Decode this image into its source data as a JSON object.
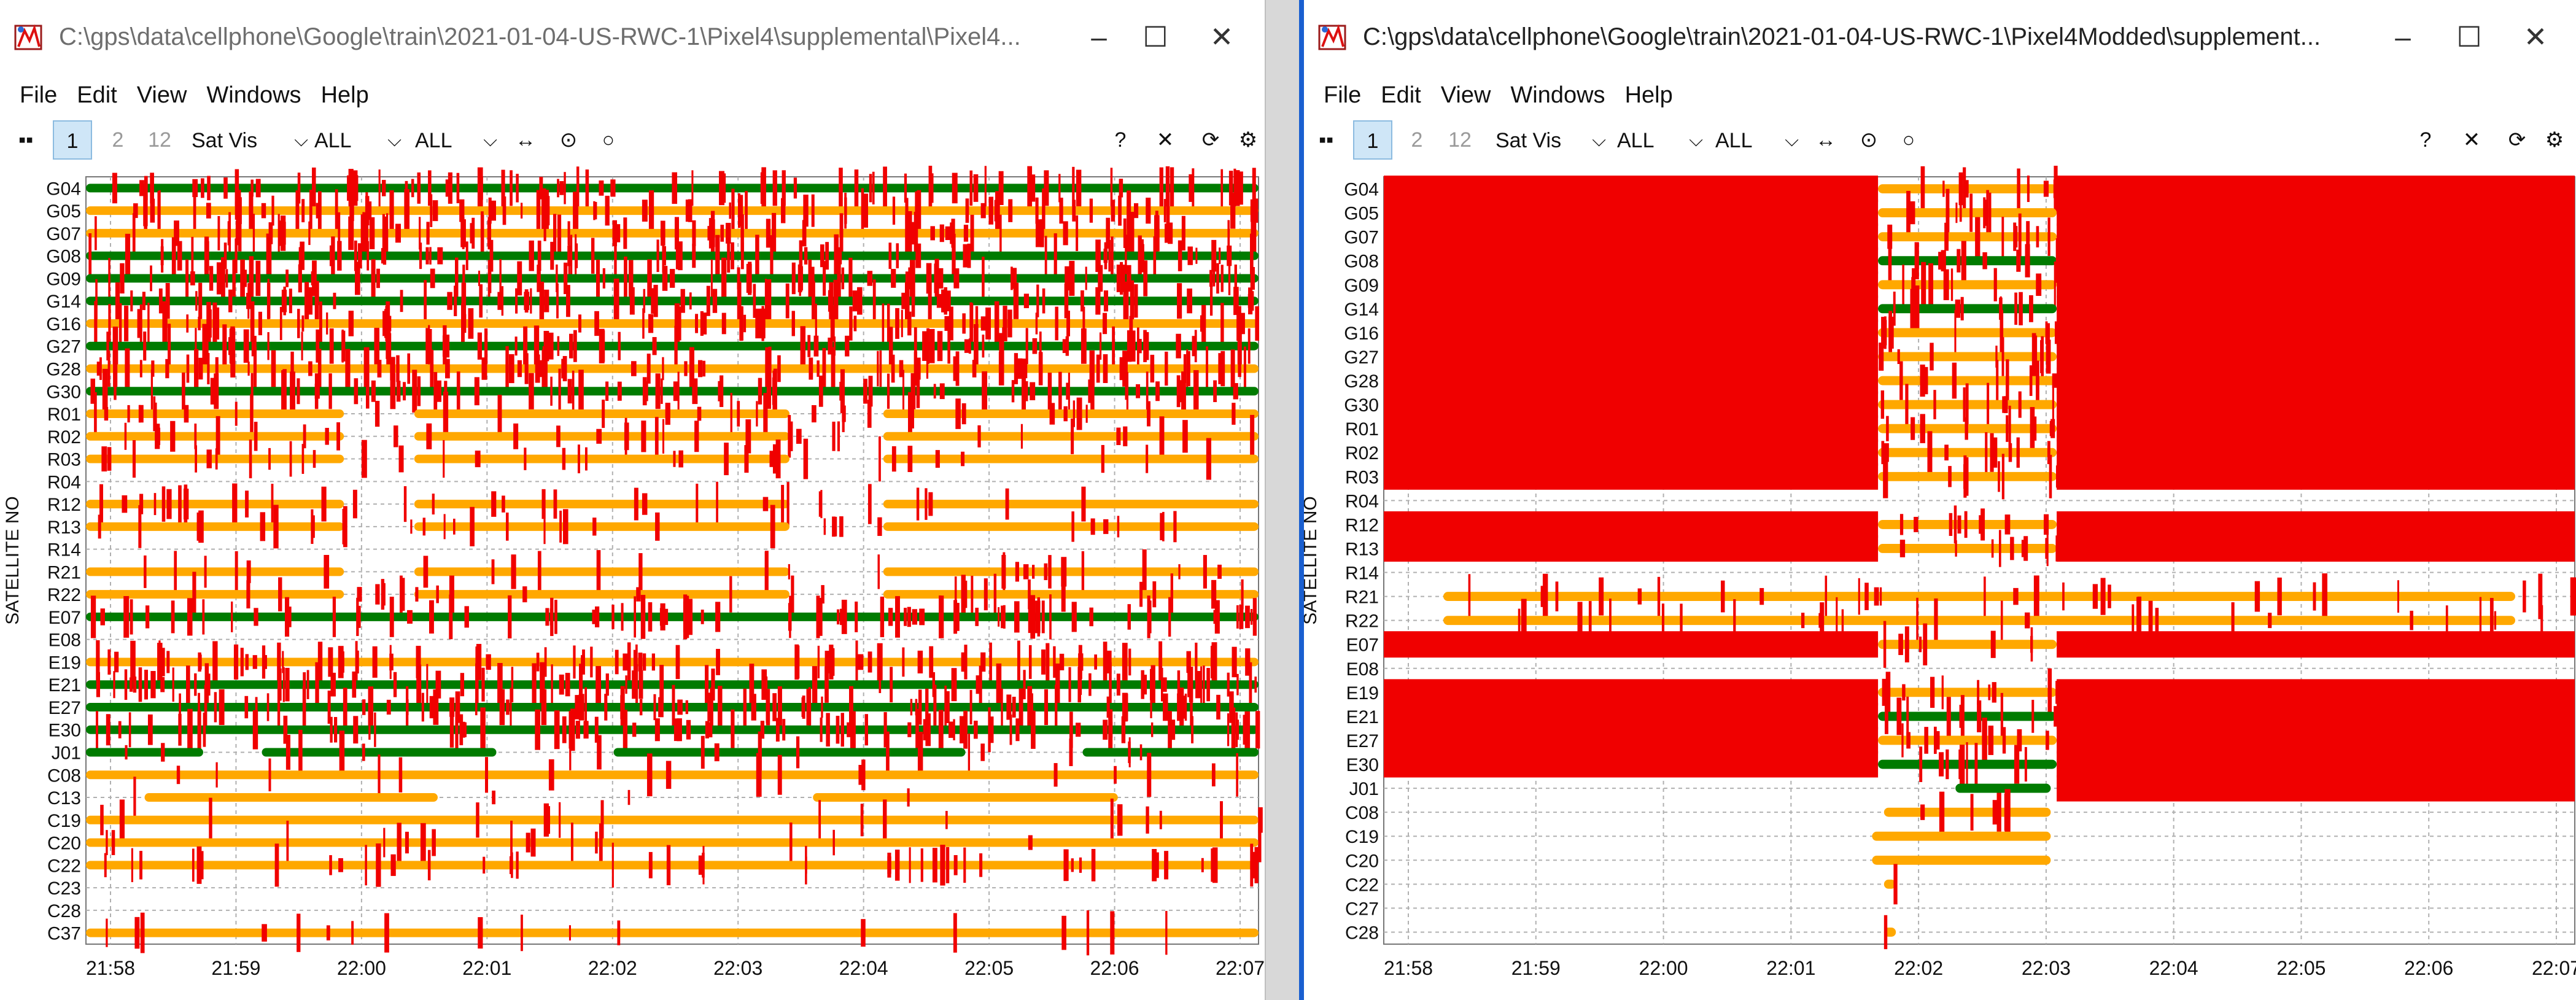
{
  "left_window": {
    "title": "C:\\gps\\data\\cellphone\\Google\\train\\2021-01-04-US-RWC-1\\Pixel4\\supplemental\\Pixel4...",
    "menu": [
      "File",
      "Edit",
      "View",
      "Windows",
      "Help"
    ],
    "toolbar": {
      "plot_1": "1",
      "plot_2": "2",
      "plot_12": "12",
      "plot_type": "Sat Vis",
      "filter_1": "ALL",
      "filter_2": "ALL",
      "help": "?"
    },
    "y_axis_label": "SATELLITE NO",
    "satellites": [
      "G04",
      "G05",
      "G07",
      "G08",
      "G09",
      "G14",
      "G16",
      "G27",
      "G28",
      "G30",
      "R01",
      "R02",
      "R03",
      "R04",
      "R12",
      "R13",
      "R14",
      "R21",
      "R22",
      "E07",
      "E08",
      "E19",
      "E21",
      "E27",
      "E30",
      "J01",
      "C08",
      "C13",
      "C19",
      "C20",
      "C22",
      "C23",
      "C28",
      "C37"
    ],
    "time_labels": [
      "21:58",
      "21:59",
      "22:00",
      "22:01",
      "22:02",
      "22:03",
      "22:04",
      "22:05",
      "22:06",
      "22:07"
    ]
  },
  "right_window": {
    "title": "C:\\gps\\data\\cellphone\\Google\\train\\2021-01-04-US-RWC-1\\Pixel4Modded\\supplement...",
    "menu": [
      "File",
      "Edit",
      "View",
      "Windows",
      "Help"
    ],
    "toolbar": {
      "plot_1": "1",
      "plot_2": "2",
      "plot_12": "12",
      "plot_type": "Sat Vis",
      "filter_1": "ALL",
      "filter_2": "ALL",
      "help": "?"
    },
    "y_axis_label": "SATELLITE NO",
    "satellites": [
      "G04",
      "G05",
      "G07",
      "G08",
      "G09",
      "G14",
      "G16",
      "G27",
      "G28",
      "G30",
      "R01",
      "R02",
      "R03",
      "R04",
      "R12",
      "R13",
      "R14",
      "R21",
      "R22",
      "E07",
      "E08",
      "E19",
      "E21",
      "E27",
      "E30",
      "J01",
      "C08",
      "C19",
      "C20",
      "C22",
      "C27",
      "C28"
    ],
    "time_labels": [
      "21:58",
      "21:59",
      "22:00",
      "22:01",
      "22:02",
      "22:03",
      "22:04",
      "22:05",
      "22:06",
      "22:07"
    ]
  },
  "colors": {
    "red": "#f00000",
    "orange": "#ffa800",
    "green": "#007b00",
    "grid": "#b0b0b0",
    "active_button": "#cfe6f7"
  },
  "icons": [
    "app-icon",
    "minimize-icon",
    "maximize-icon",
    "close-icon",
    "toolbar-grip-icon",
    "fit-horizontal-icon",
    "center-icon",
    "dot-icon",
    "help-icon",
    "close-plot-icon",
    "refresh-icon",
    "gear-icon",
    "chevron-down-icon"
  ]
}
